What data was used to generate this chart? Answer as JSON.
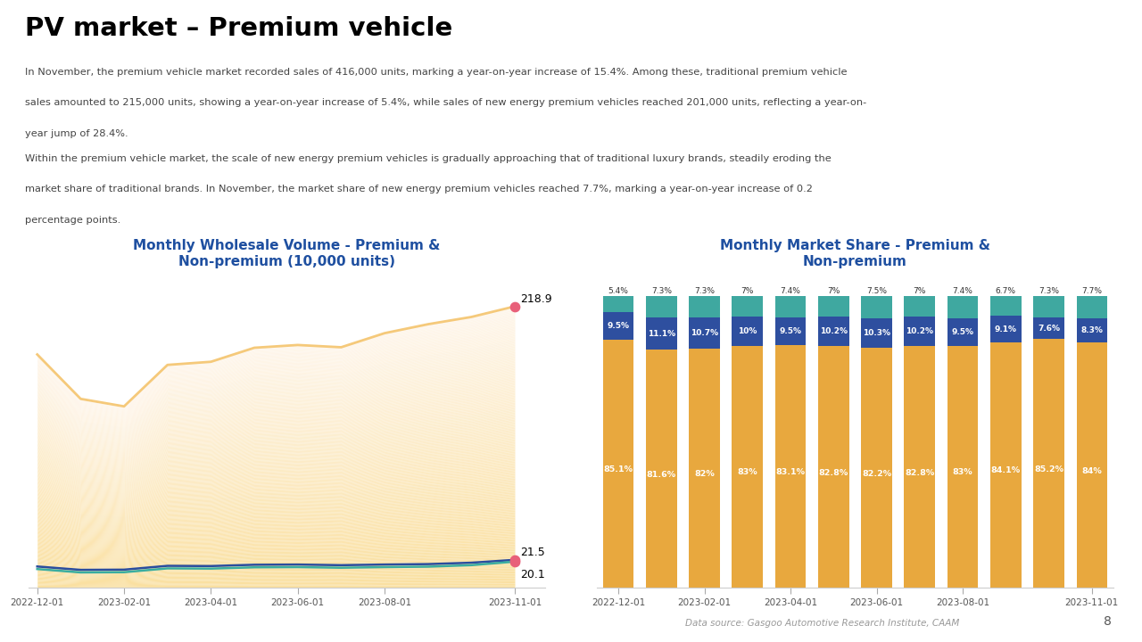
{
  "title": "PV market – Premium vehicle",
  "desc1_line1": "In November, the premium vehicle market recorded sales of 416,000 units, marking a year-on-year increase of 15.4%. Among these, traditional premium vehicle",
  "desc1_line2": "sales amounted to 215,000 units, showing a year-on-year increase of 5.4%, while sales of new energy premium vehicles reached 201,000 units, reflecting a year-on-",
  "desc1_line3": "year jump of 28.4%.",
  "desc2_line1": "Within the premium vehicle market, the scale of new energy premium vehicles is gradually approaching that of traditional luxury brands, steadily eroding the",
  "desc2_line2": "market share of traditional brands. In November, the market share of new energy premium vehicles reached 7.7%, marking a year-on-year increase of 0.2",
  "desc2_line3": "percentage points.",
  "left_chart_title": "Monthly Wholesale Volume - Premium &\nNon-premium (10,000 units)",
  "right_chart_title": "Monthly Market Share - Premium &\nNon-premium",
  "months": [
    "2022-12-01",
    "2023-01-01",
    "2023-02-01",
    "2023-03-01",
    "2023-04-01",
    "2023-05-01",
    "2023-06-01",
    "2023-07-01",
    "2023-08-01",
    "2023-09-01",
    "2023-10-01",
    "2023-11-01"
  ],
  "non_premium": [
    190,
    140,
    130,
    185,
    170,
    190,
    190,
    183,
    200,
    205,
    210,
    218.9
  ],
  "trad_premium": [
    17,
    13,
    13,
    18,
    16,
    18,
    18,
    17,
    18,
    18,
    19,
    21.5
  ],
  "nev_premium": [
    15,
    11,
    11,
    16,
    14,
    16,
    16,
    15,
    16,
    16,
    17,
    20.1
  ],
  "left_x_ticks": [
    "2022-12-01",
    "2023-02-01",
    "2023-04-01",
    "2023-06-01",
    "2023-08-01",
    "2023-11-01"
  ],
  "non_premium_line_color": "#F5C97A",
  "non_premium_fill_top": "#FAE0A0",
  "non_premium_fill_bot": "#FDF8EE",
  "trad_premium_color": "#2A4D9E",
  "nev_premium_color": "#3AADA0",
  "bar_months": [
    "2022-12-01",
    "2023-01-01",
    "2023-02-01",
    "2023-03-01",
    "2023-04-01",
    "2023-05-01",
    "2023-06-01",
    "2023-07-01",
    "2023-08-01",
    "2023-09-01",
    "2023-10-01",
    "2023-11-01"
  ],
  "bar_x_labels": [
    "2022-12-01",
    "2023-02-01",
    "2023-04-01",
    "2023-06-01",
    "2023-08-01",
    "2023-11-01"
  ],
  "non_premium_share": [
    85.1,
    81.6,
    82.0,
    83.0,
    83.1,
    82.8,
    82.2,
    82.8,
    83.0,
    84.1,
    85.2,
    84.0
  ],
  "trad_premium_share": [
    9.5,
    11.1,
    10.7,
    10.0,
    9.5,
    10.2,
    10.3,
    10.2,
    9.5,
    9.1,
    7.6,
    8.3
  ],
  "nev_premium_share": [
    5.4,
    7.3,
    7.3,
    7.0,
    7.4,
    7.0,
    7.5,
    7.0,
    7.4,
    6.7,
    7.3,
    7.7
  ],
  "non_premium_share_labels": [
    "85.1%",
    "81.6%",
    "82%",
    "83%",
    "83.1%",
    "82.8%",
    "82.2%",
    "82.8%",
    "83%",
    "84.1%",
    "85.2%",
    "84%"
  ],
  "trad_premium_share_labels": [
    "9.5%",
    "11.1%",
    "10.7%",
    "10%",
    "9.5%",
    "10.2%",
    "10.3%",
    "10.2%",
    "9.5%",
    "9.1%",
    "7.6%",
    "8.3%"
  ],
  "nev_premium_share_labels": [
    "5.4%",
    "7.3%",
    "7.3%",
    "7%",
    "7.4%",
    "7%",
    "7.5%",
    "7%",
    "7.4%",
    "6.7%",
    "7.3%",
    "7.7%"
  ],
  "bar_non_premium_color": "#E8A83E",
  "bar_trad_premium_color": "#2E4F9F",
  "bar_nev_premium_color": "#3FA8A0",
  "dot_color": "#E8607A",
  "data_source": "Data source: Gasgoo Automotive Research Institute, CAAM",
  "page_number": "8",
  "bg_color": "#FFFFFF",
  "title_color": "#000000",
  "chart_title_color": "#1E4FA0",
  "text_color": "#444444"
}
